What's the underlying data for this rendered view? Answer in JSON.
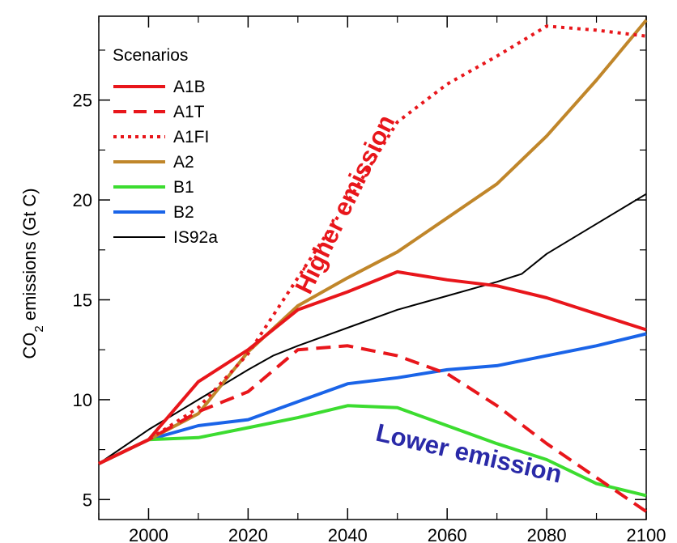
{
  "chart_data": {
    "type": "line",
    "ylabel_main": "CO",
    "ylabel_sub": "2",
    "ylabel_rest": " emissions (Gt C)",
    "xlim": [
      1990,
      2100
    ],
    "ylim": [
      4,
      29.2
    ],
    "x_ticks": [
      2000,
      2020,
      2040,
      2060,
      2080,
      2100
    ],
    "x_tick_labels": [
      "2000",
      "2020",
      "2040",
      "2060",
      "2080",
      "2100"
    ],
    "y_ticks": [
      5,
      10,
      15,
      20,
      25
    ],
    "y_tick_labels": [
      "5",
      "10",
      "15",
      "20",
      "25"
    ],
    "grid": false,
    "legend": {
      "title": "Scenarios",
      "placement": "top-left"
    },
    "series": [
      {
        "name": "A1B",
        "color": "#e8161b",
        "style": "solid",
        "x": [
          1990,
          2000,
          2010,
          2020,
          2030,
          2040,
          2050,
          2060,
          2070,
          2080,
          2090,
          2100
        ],
        "y": [
          6.8,
          8.0,
          10.9,
          12.5,
          14.5,
          15.4,
          16.4,
          16.0,
          15.7,
          15.1,
          14.3,
          13.5
        ]
      },
      {
        "name": "A1T",
        "color": "#e8161b",
        "style": "dashed",
        "x": [
          1990,
          2000,
          2010,
          2020,
          2030,
          2040,
          2050,
          2060,
          2070,
          2080,
          2090,
          2100
        ],
        "y": [
          6.8,
          8.0,
          9.4,
          10.4,
          12.5,
          12.7,
          12.2,
          11.3,
          9.7,
          7.8,
          6.1,
          4.4
        ]
      },
      {
        "name": "A1FI",
        "color": "#e8161b",
        "style": "dotted",
        "x": [
          1990,
          2000,
          2010,
          2020,
          2030,
          2040,
          2050,
          2060,
          2070,
          2080,
          2090,
          2100
        ],
        "y": [
          6.8,
          8.0,
          9.6,
          12.3,
          16.1,
          19.9,
          23.9,
          25.8,
          27.2,
          28.7,
          28.5,
          28.2
        ]
      },
      {
        "name": "A2",
        "color": "#c0862a",
        "style": "solid",
        "x": [
          1990,
          2000,
          2010,
          2020,
          2030,
          2040,
          2050,
          2060,
          2070,
          2080,
          2090,
          2100
        ],
        "y": [
          6.8,
          8.0,
          9.3,
          12.4,
          14.7,
          16.1,
          17.4,
          19.1,
          20.8,
          23.2,
          26.0,
          29.0
        ]
      },
      {
        "name": "B1",
        "color": "#3cdc30",
        "style": "solid",
        "x": [
          1990,
          2000,
          2010,
          2020,
          2030,
          2040,
          2050,
          2060,
          2070,
          2080,
          2090,
          2100
        ],
        "y": [
          6.8,
          8.0,
          8.1,
          8.6,
          9.1,
          9.7,
          9.6,
          8.7,
          7.8,
          7.0,
          5.8,
          5.2
        ]
      },
      {
        "name": "B2",
        "color": "#1a64e8",
        "style": "solid",
        "x": [
          1990,
          2000,
          2010,
          2020,
          2030,
          2040,
          2050,
          2060,
          2070,
          2080,
          2090,
          2100
        ],
        "y": [
          6.8,
          8.0,
          8.7,
          9.0,
          9.9,
          10.8,
          11.1,
          11.5,
          11.7,
          12.2,
          12.7,
          13.3
        ]
      },
      {
        "name": "IS92a",
        "color": "#000000",
        "style": "thin",
        "x": [
          1990,
          2000,
          2010,
          2020,
          2025,
          2030,
          2040,
          2050,
          2060,
          2070,
          2075,
          2080,
          2090,
          2100
        ],
        "y": [
          6.8,
          8.5,
          10.0,
          11.5,
          12.2,
          12.7,
          13.6,
          14.5,
          15.2,
          15.9,
          16.3,
          17.3,
          18.8,
          20.3
        ]
      }
    ],
    "annotations": [
      {
        "text": "Higher emission",
        "color": "#e8161b",
        "x": 2041,
        "y": 19.6,
        "angle": -64
      },
      {
        "text": "Lower emission",
        "color": "#2a2aa8",
        "x": 2064,
        "y": 6.9,
        "angle": 13
      }
    ]
  }
}
